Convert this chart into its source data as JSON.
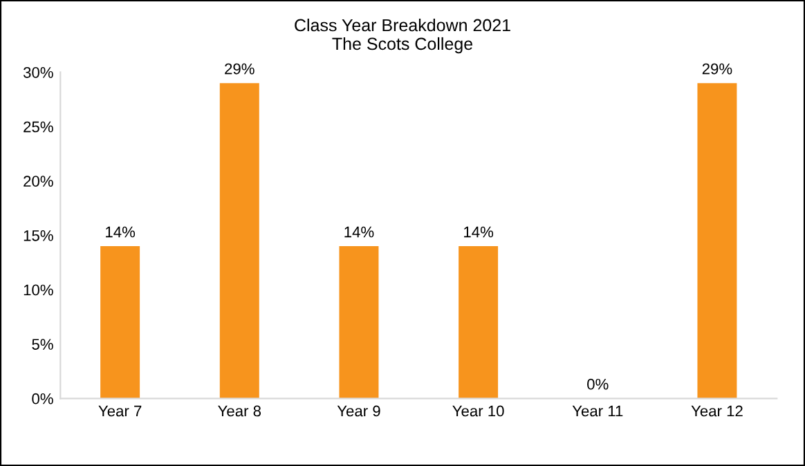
{
  "chart_data": {
    "type": "bar",
    "title": "Class Year Breakdown 2021\nThe Scots College",
    "categories": [
      "Year 7",
      "Year 8",
      "Year 9",
      "Year 10",
      "Year 11",
      "Year 12"
    ],
    "values": [
      14,
      29,
      14,
      14,
      0,
      29
    ],
    "value_labels": [
      "14%",
      "29%",
      "14%",
      "14%",
      "0%",
      "29%"
    ],
    "color": "#f7941d",
    "ylim": [
      0,
      30
    ],
    "yticks": [
      {
        "value": 0,
        "label": "0%"
      },
      {
        "value": 5,
        "label": "5%"
      },
      {
        "value": 10,
        "label": "10%"
      },
      {
        "value": 15,
        "label": "15%"
      },
      {
        "value": 20,
        "label": "20%"
      },
      {
        "value": 25,
        "label": "25%"
      },
      {
        "value": 30,
        "label": "30%"
      }
    ],
    "grid": false,
    "legend": false
  }
}
